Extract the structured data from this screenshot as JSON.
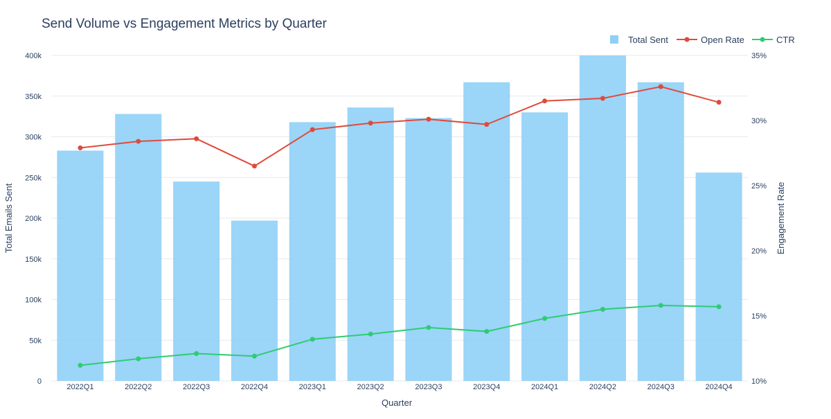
{
  "chart_data": {
    "type": "bar",
    "title": "Send Volume vs Engagement Metrics by Quarter",
    "xlabel": "Quarter",
    "ylabel": "Total Emails Sent",
    "y2label": "Engagement Rate",
    "categories": [
      "2022Q1",
      "2022Q2",
      "2022Q3",
      "2022Q4",
      "2023Q1",
      "2023Q2",
      "2023Q3",
      "2023Q4",
      "2024Q1",
      "2024Q2",
      "2024Q3",
      "2024Q4"
    ],
    "ylim": [
      0,
      400000
    ],
    "y_ticks": [
      0,
      50000,
      100000,
      150000,
      200000,
      250000,
      300000,
      350000,
      400000
    ],
    "y_tick_labels": [
      "0",
      "50k",
      "100k",
      "150k",
      "200k",
      "250k",
      "300k",
      "350k",
      "400k"
    ],
    "y2lim": [
      10,
      35
    ],
    "y2_ticks": [
      10,
      15,
      20,
      25,
      30,
      35
    ],
    "y2_tick_labels": [
      "10%",
      "15%",
      "20%",
      "25%",
      "30%",
      "35%"
    ],
    "grid": true,
    "legend_position": "top-right",
    "series": [
      {
        "name": "Total Sent",
        "type": "bar",
        "axis": "left",
        "color": "#90d0f7",
        "values": [
          283000,
          328000,
          245000,
          197000,
          318000,
          336000,
          323000,
          367000,
          330000,
          400000,
          367000,
          256000
        ]
      },
      {
        "name": "Open Rate",
        "type": "line",
        "axis": "right",
        "color": "#e04a3a",
        "values": [
          27.9,
          28.4,
          28.6,
          26.5,
          29.3,
          29.8,
          30.1,
          29.7,
          31.5,
          31.7,
          32.6,
          31.4
        ]
      },
      {
        "name": "CTR",
        "type": "line",
        "axis": "right",
        "color": "#2ecc71",
        "values": [
          11.2,
          11.7,
          12.1,
          11.9,
          13.2,
          13.6,
          14.1,
          13.8,
          14.8,
          15.5,
          15.8,
          15.7
        ]
      }
    ]
  }
}
